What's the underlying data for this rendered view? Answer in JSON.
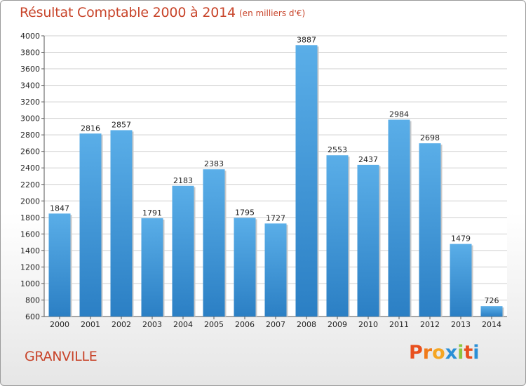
{
  "header": {
    "title": "Résultat Comptable 2000 à 2014",
    "subtitle": "(en milliers d'€)"
  },
  "footer": {
    "city": "GRANVILLE",
    "logo_letters": [
      "P",
      "r",
      "o",
      "x",
      "i",
      "t",
      "i"
    ]
  },
  "colors": {
    "title": "#c8442a",
    "bar_top": "#5aaee8",
    "bar_bottom": "#2b7fc4",
    "grid": "#cfcfcf",
    "logo": [
      "#e8501e",
      "#f07a1a",
      "#f5a623",
      "#2a8fd6",
      "#8cc63f",
      "#e8501e",
      "#2a8fd6"
    ]
  },
  "chart_data": {
    "type": "bar",
    "title": "Résultat Comptable 2000 à 2014",
    "subtitle": "(en milliers d'€)",
    "categories": [
      "2000",
      "2001",
      "2002",
      "2003",
      "2004",
      "2005",
      "2006",
      "2007",
      "2008",
      "2009",
      "2010",
      "2011",
      "2012",
      "2013",
      "2014"
    ],
    "values": [
      1847,
      2816,
      2857,
      1791,
      2183,
      2383,
      1795,
      1727,
      3887,
      2553,
      2437,
      2984,
      2698,
      1479,
      726
    ],
    "ylim": [
      600,
      4000
    ],
    "yticks": [
      600,
      800,
      1000,
      1200,
      1400,
      1600,
      1800,
      2000,
      2200,
      2400,
      2600,
      2800,
      3000,
      3200,
      3400,
      3600,
      3800,
      4000
    ],
    "xlabel": "",
    "ylabel": "",
    "grid": true
  }
}
